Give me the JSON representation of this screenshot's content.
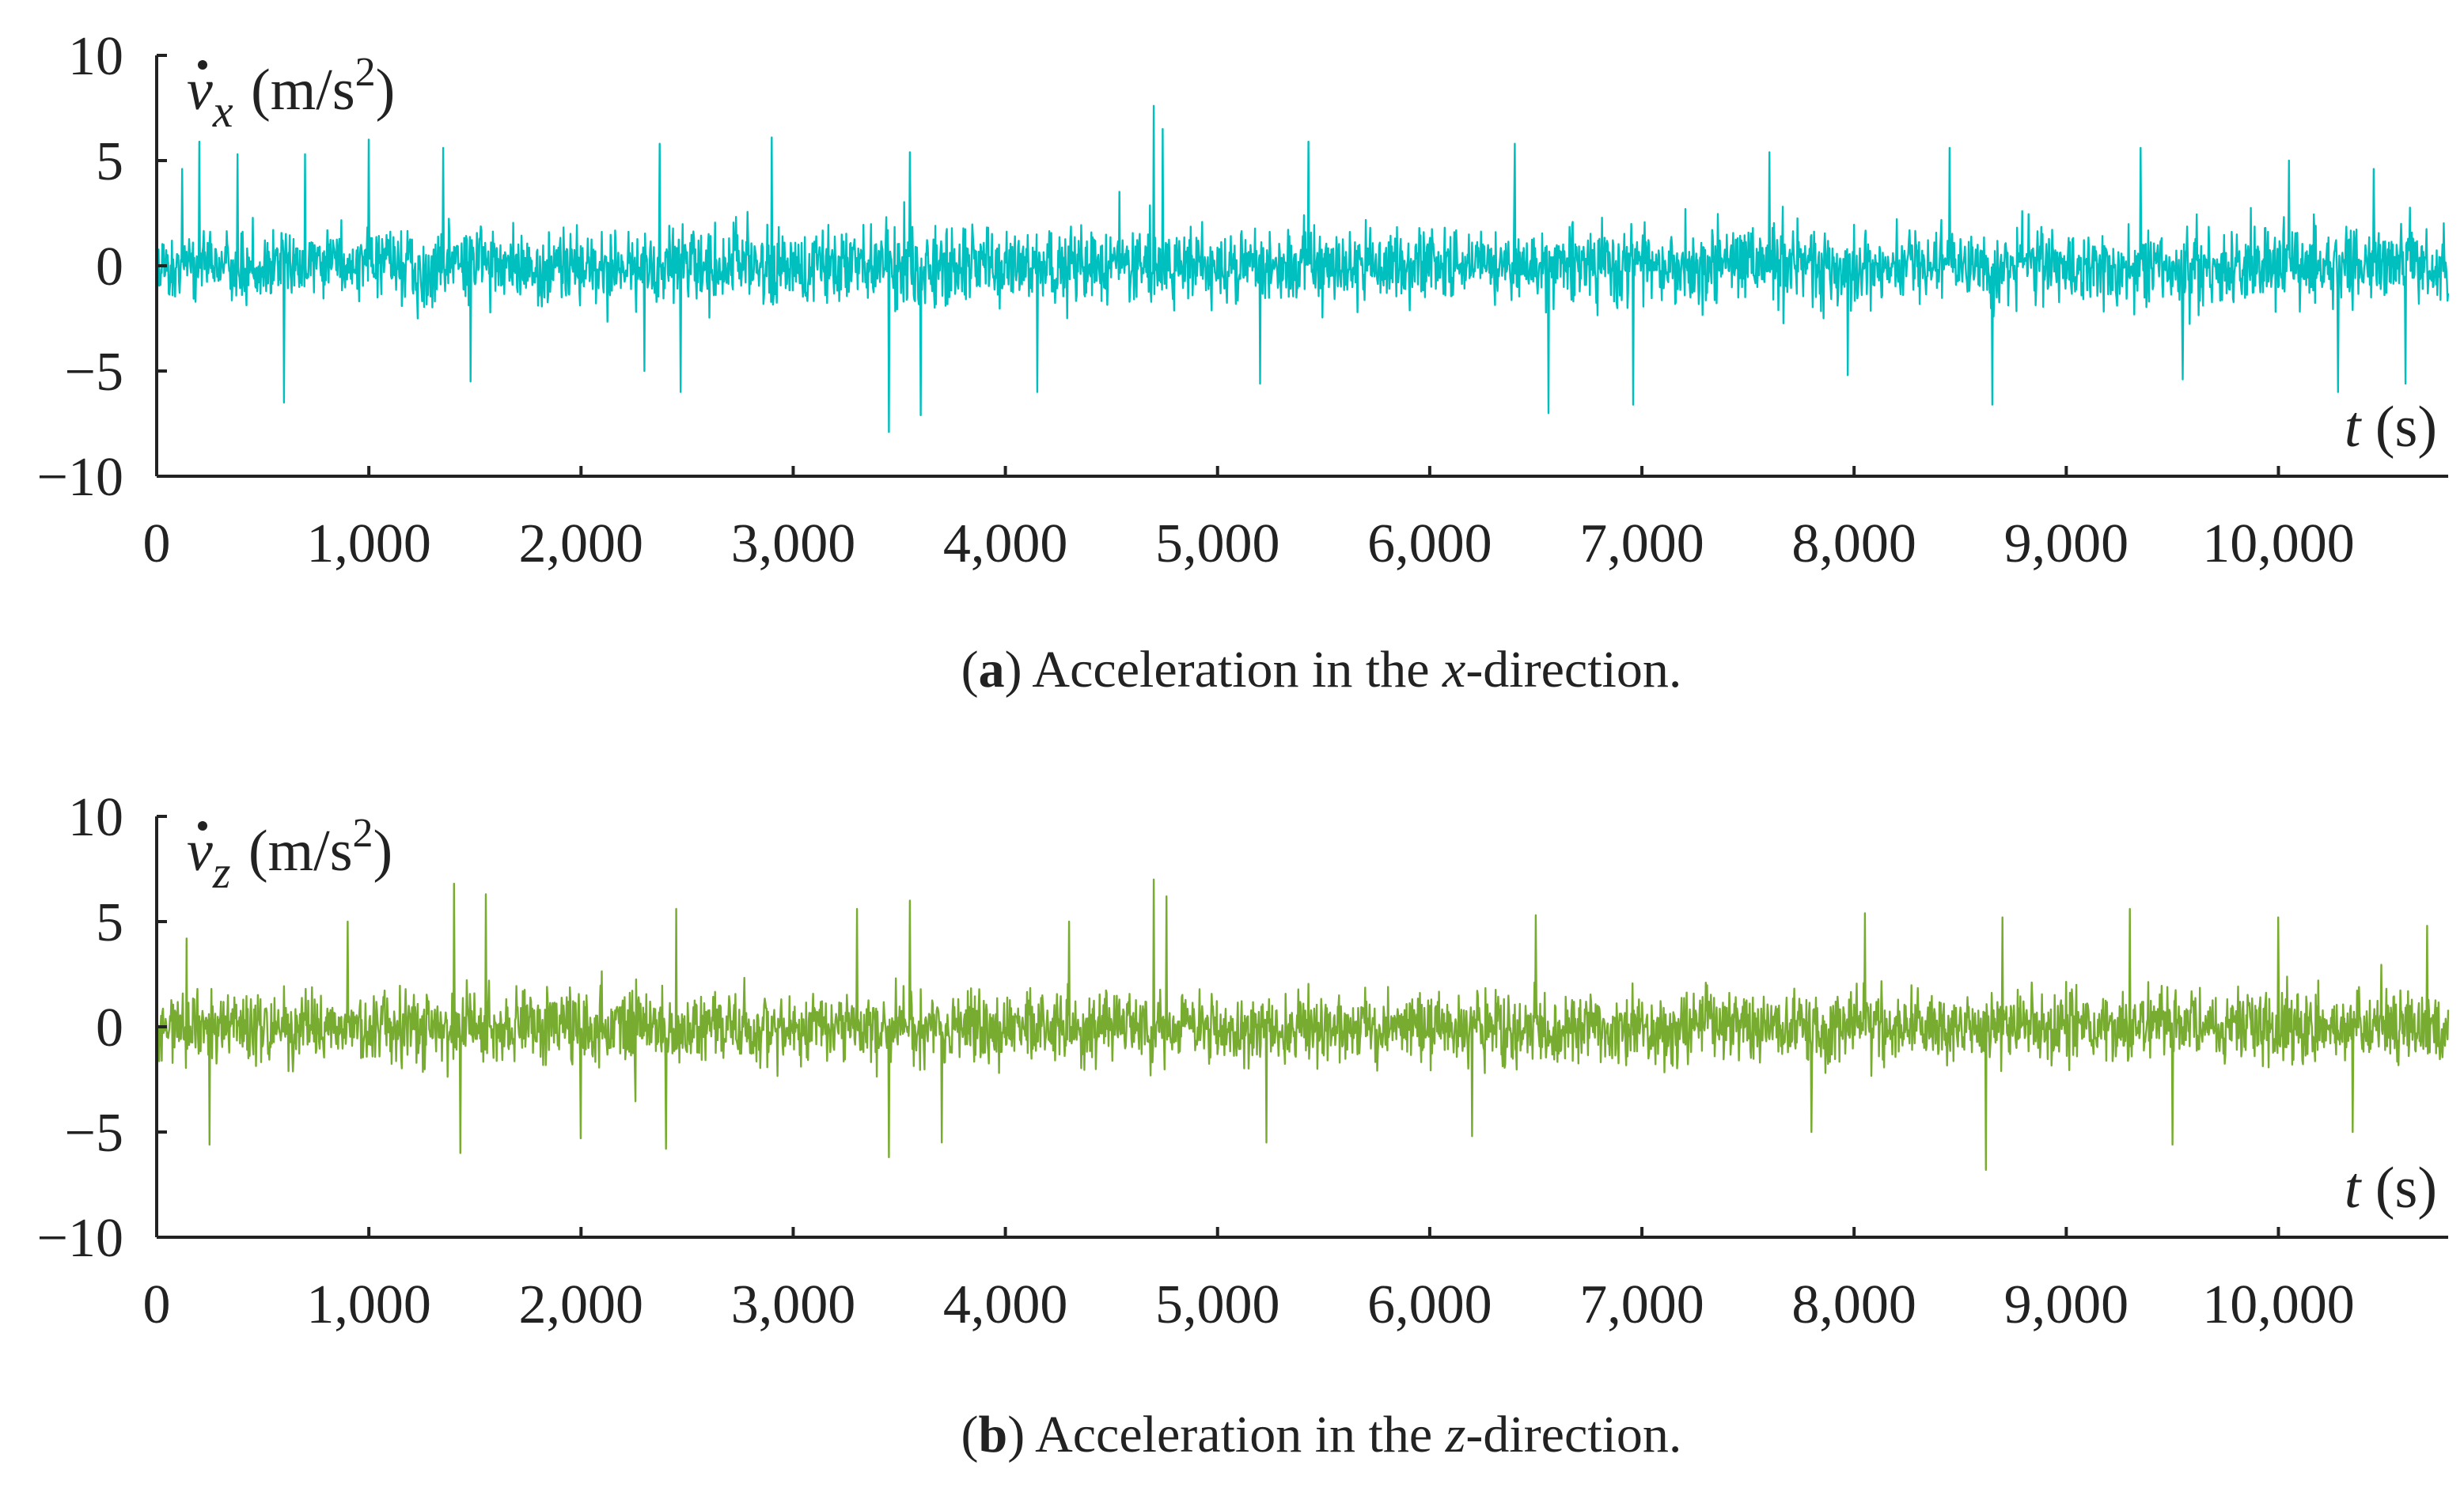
{
  "chart_data": [
    {
      "type": "line",
      "panel_label": "a",
      "caption": {
        "label": "a",
        "text_before": " Acceleration in the ",
        "variable": "x",
        "text_after": "-direction."
      },
      "ylabel": {
        "symbol": "v",
        "subscript": "x",
        "unit_prefix": " (m/s",
        "unit_power": "2",
        "unit_suffix": ")"
      },
      "xlabel": {
        "symbol": "t",
        "unit": " (s)"
      },
      "xlim": [
        0,
        10800
      ],
      "ylim": [
        -10,
        10
      ],
      "x_ticks": [
        0,
        1000,
        2000,
        3000,
        4000,
        5000,
        6000,
        7000,
        8000,
        9000,
        10000
      ],
      "x_tick_labels": [
        "0",
        "1,000",
        "2,000",
        "3,000",
        "4,000",
        "5,000",
        "6,000",
        "7,000",
        "8,000",
        "9,000",
        "10,000"
      ],
      "y_ticks": [
        10,
        5,
        0,
        -5,
        -10
      ],
      "y_tick_labels": [
        "10",
        "5",
        "0",
        "−5",
        "−10"
      ],
      "color": "#00BFBF",
      "signal": {
        "samples": 3600,
        "typical_envelope": [
          -2.5,
          2.5
        ],
        "seed": 17,
        "peaks": [
          {
            "x": 120,
            "y": 4.6
          },
          {
            "x": 200,
            "y": 5.9
          },
          {
            "x": 380,
            "y": 5.3
          },
          {
            "x": 600,
            "y": -6.5
          },
          {
            "x": 700,
            "y": 5.3
          },
          {
            "x": 1000,
            "y": 6.0
          },
          {
            "x": 1350,
            "y": 5.6
          },
          {
            "x": 1480,
            "y": -5.5
          },
          {
            "x": 2300,
            "y": -5.0
          },
          {
            "x": 2370,
            "y": 5.8
          },
          {
            "x": 2470,
            "y": -6.0
          },
          {
            "x": 2900,
            "y": 6.1
          },
          {
            "x": 3450,
            "y": -7.9
          },
          {
            "x": 3550,
            "y": 5.4
          },
          {
            "x": 3600,
            "y": -7.1
          },
          {
            "x": 4150,
            "y": -6.0
          },
          {
            "x": 4700,
            "y": 7.6
          },
          {
            "x": 4740,
            "y": 6.5
          },
          {
            "x": 5430,
            "y": 5.9
          },
          {
            "x": 5200,
            "y": -5.6
          },
          {
            "x": 6400,
            "y": 5.8
          },
          {
            "x": 6560,
            "y": -7.0
          },
          {
            "x": 6960,
            "y": -6.6
          },
          {
            "x": 7600,
            "y": 5.4
          },
          {
            "x": 7970,
            "y": -5.2
          },
          {
            "x": 8450,
            "y": 5.6
          },
          {
            "x": 8650,
            "y": -6.6
          },
          {
            "x": 9350,
            "y": 5.6
          },
          {
            "x": 9550,
            "y": -5.4
          },
          {
            "x": 10050,
            "y": 5.0
          },
          {
            "x": 10280,
            "y": -6.0
          },
          {
            "x": 10450,
            "y": 4.6
          },
          {
            "x": 10600,
            "y": -5.6
          }
        ]
      }
    },
    {
      "type": "line",
      "panel_label": "b",
      "caption": {
        "label": "b",
        "text_before": " Acceleration in the ",
        "variable": "z",
        "text_after": "-direction."
      },
      "ylabel": {
        "symbol": "v",
        "subscript": "z",
        "unit_prefix": " (m/s",
        "unit_power": "2",
        "unit_suffix": ")"
      },
      "xlabel": {
        "symbol": "t",
        "unit": " (s)"
      },
      "xlim": [
        0,
        10800
      ],
      "ylim": [
        -10,
        10
      ],
      "x_ticks": [
        0,
        1000,
        2000,
        3000,
        4000,
        5000,
        6000,
        7000,
        8000,
        9000,
        10000
      ],
      "x_tick_labels": [
        "0",
        "1,000",
        "2,000",
        "3,000",
        "4,000",
        "5,000",
        "6,000",
        "7,000",
        "8,000",
        "9,000",
        "10,000"
      ],
      "y_ticks": [
        10,
        5,
        0,
        -5,
        -10
      ],
      "y_tick_labels": [
        "10",
        "5",
        "0",
        "−5",
        "−10"
      ],
      "color": "#77AC30",
      "signal": {
        "samples": 3600,
        "typical_envelope": [
          -2.5,
          2.5
        ],
        "seed": 41,
        "peaks": [
          {
            "x": 140,
            "y": 4.2
          },
          {
            "x": 250,
            "y": -5.6
          },
          {
            "x": 900,
            "y": 5.0
          },
          {
            "x": 1400,
            "y": 6.8
          },
          {
            "x": 1430,
            "y": -6.0
          },
          {
            "x": 1550,
            "y": 6.3
          },
          {
            "x": 2000,
            "y": -5.3
          },
          {
            "x": 2450,
            "y": 5.6
          },
          {
            "x": 2400,
            "y": -5.8
          },
          {
            "x": 3300,
            "y": 5.6
          },
          {
            "x": 3450,
            "y": -6.2
          },
          {
            "x": 3550,
            "y": 6.0
          },
          {
            "x": 3700,
            "y": -5.5
          },
          {
            "x": 4300,
            "y": 5.0
          },
          {
            "x": 4700,
            "y": 7.0
          },
          {
            "x": 4760,
            "y": 6.2
          },
          {
            "x": 5230,
            "y": -5.5
          },
          {
            "x": 6200,
            "y": -5.2
          },
          {
            "x": 6500,
            "y": 5.3
          },
          {
            "x": 7800,
            "y": -5.0
          },
          {
            "x": 8050,
            "y": 5.4
          },
          {
            "x": 8620,
            "y": -6.8
          },
          {
            "x": 8700,
            "y": 5.2
          },
          {
            "x": 9300,
            "y": 5.6
          },
          {
            "x": 9500,
            "y": -5.6
          },
          {
            "x": 10000,
            "y": 5.2
          },
          {
            "x": 10350,
            "y": -5.0
          },
          {
            "x": 10700,
            "y": 4.8
          }
        ]
      }
    }
  ]
}
